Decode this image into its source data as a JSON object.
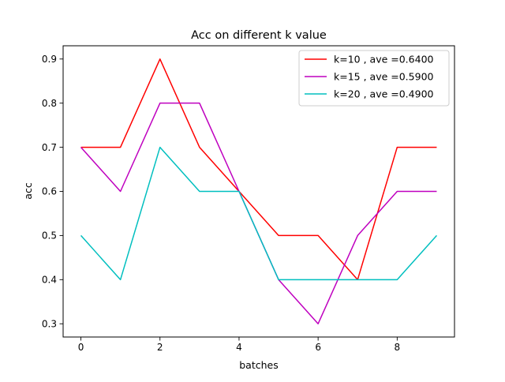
{
  "chart_data": {
    "type": "line",
    "title": "Acc on different k value",
    "xlabel": "batches",
    "ylabel": "acc",
    "x": [
      0,
      1,
      2,
      3,
      4,
      5,
      6,
      7,
      8,
      9
    ],
    "xlim": [
      -0.45,
      9.45
    ],
    "ylim": [
      0.27,
      0.93
    ],
    "xticks": [
      0,
      2,
      4,
      6,
      8
    ],
    "xtick_labels": [
      "0",
      "2",
      "4",
      "6",
      "8"
    ],
    "yticks": [
      0.3,
      0.4,
      0.5,
      0.6,
      0.7,
      0.8,
      0.9
    ],
    "ytick_labels": [
      "0.3",
      "0.4",
      "0.5",
      "0.6",
      "0.7",
      "0.8",
      "0.9"
    ],
    "grid": false,
    "legend_position": "top-right",
    "series": [
      {
        "name": "k=10 , ave =0.6400",
        "color": "#ff0000",
        "values": [
          0.7,
          0.7,
          0.9,
          0.7,
          0.6,
          0.5,
          0.5,
          0.4,
          0.7,
          0.7
        ]
      },
      {
        "name": "k=15 , ave =0.5900",
        "color": "#bf00bf",
        "values": [
          0.7,
          0.6,
          0.8,
          0.8,
          0.6,
          0.4,
          0.3,
          0.5,
          0.6,
          0.6
        ]
      },
      {
        "name": "k=20 , ave =0.4900",
        "color": "#00bfbf",
        "values": [
          0.5,
          0.4,
          0.7,
          0.6,
          0.6,
          0.4,
          0.4,
          0.4,
          0.4,
          0.5
        ]
      }
    ]
  }
}
